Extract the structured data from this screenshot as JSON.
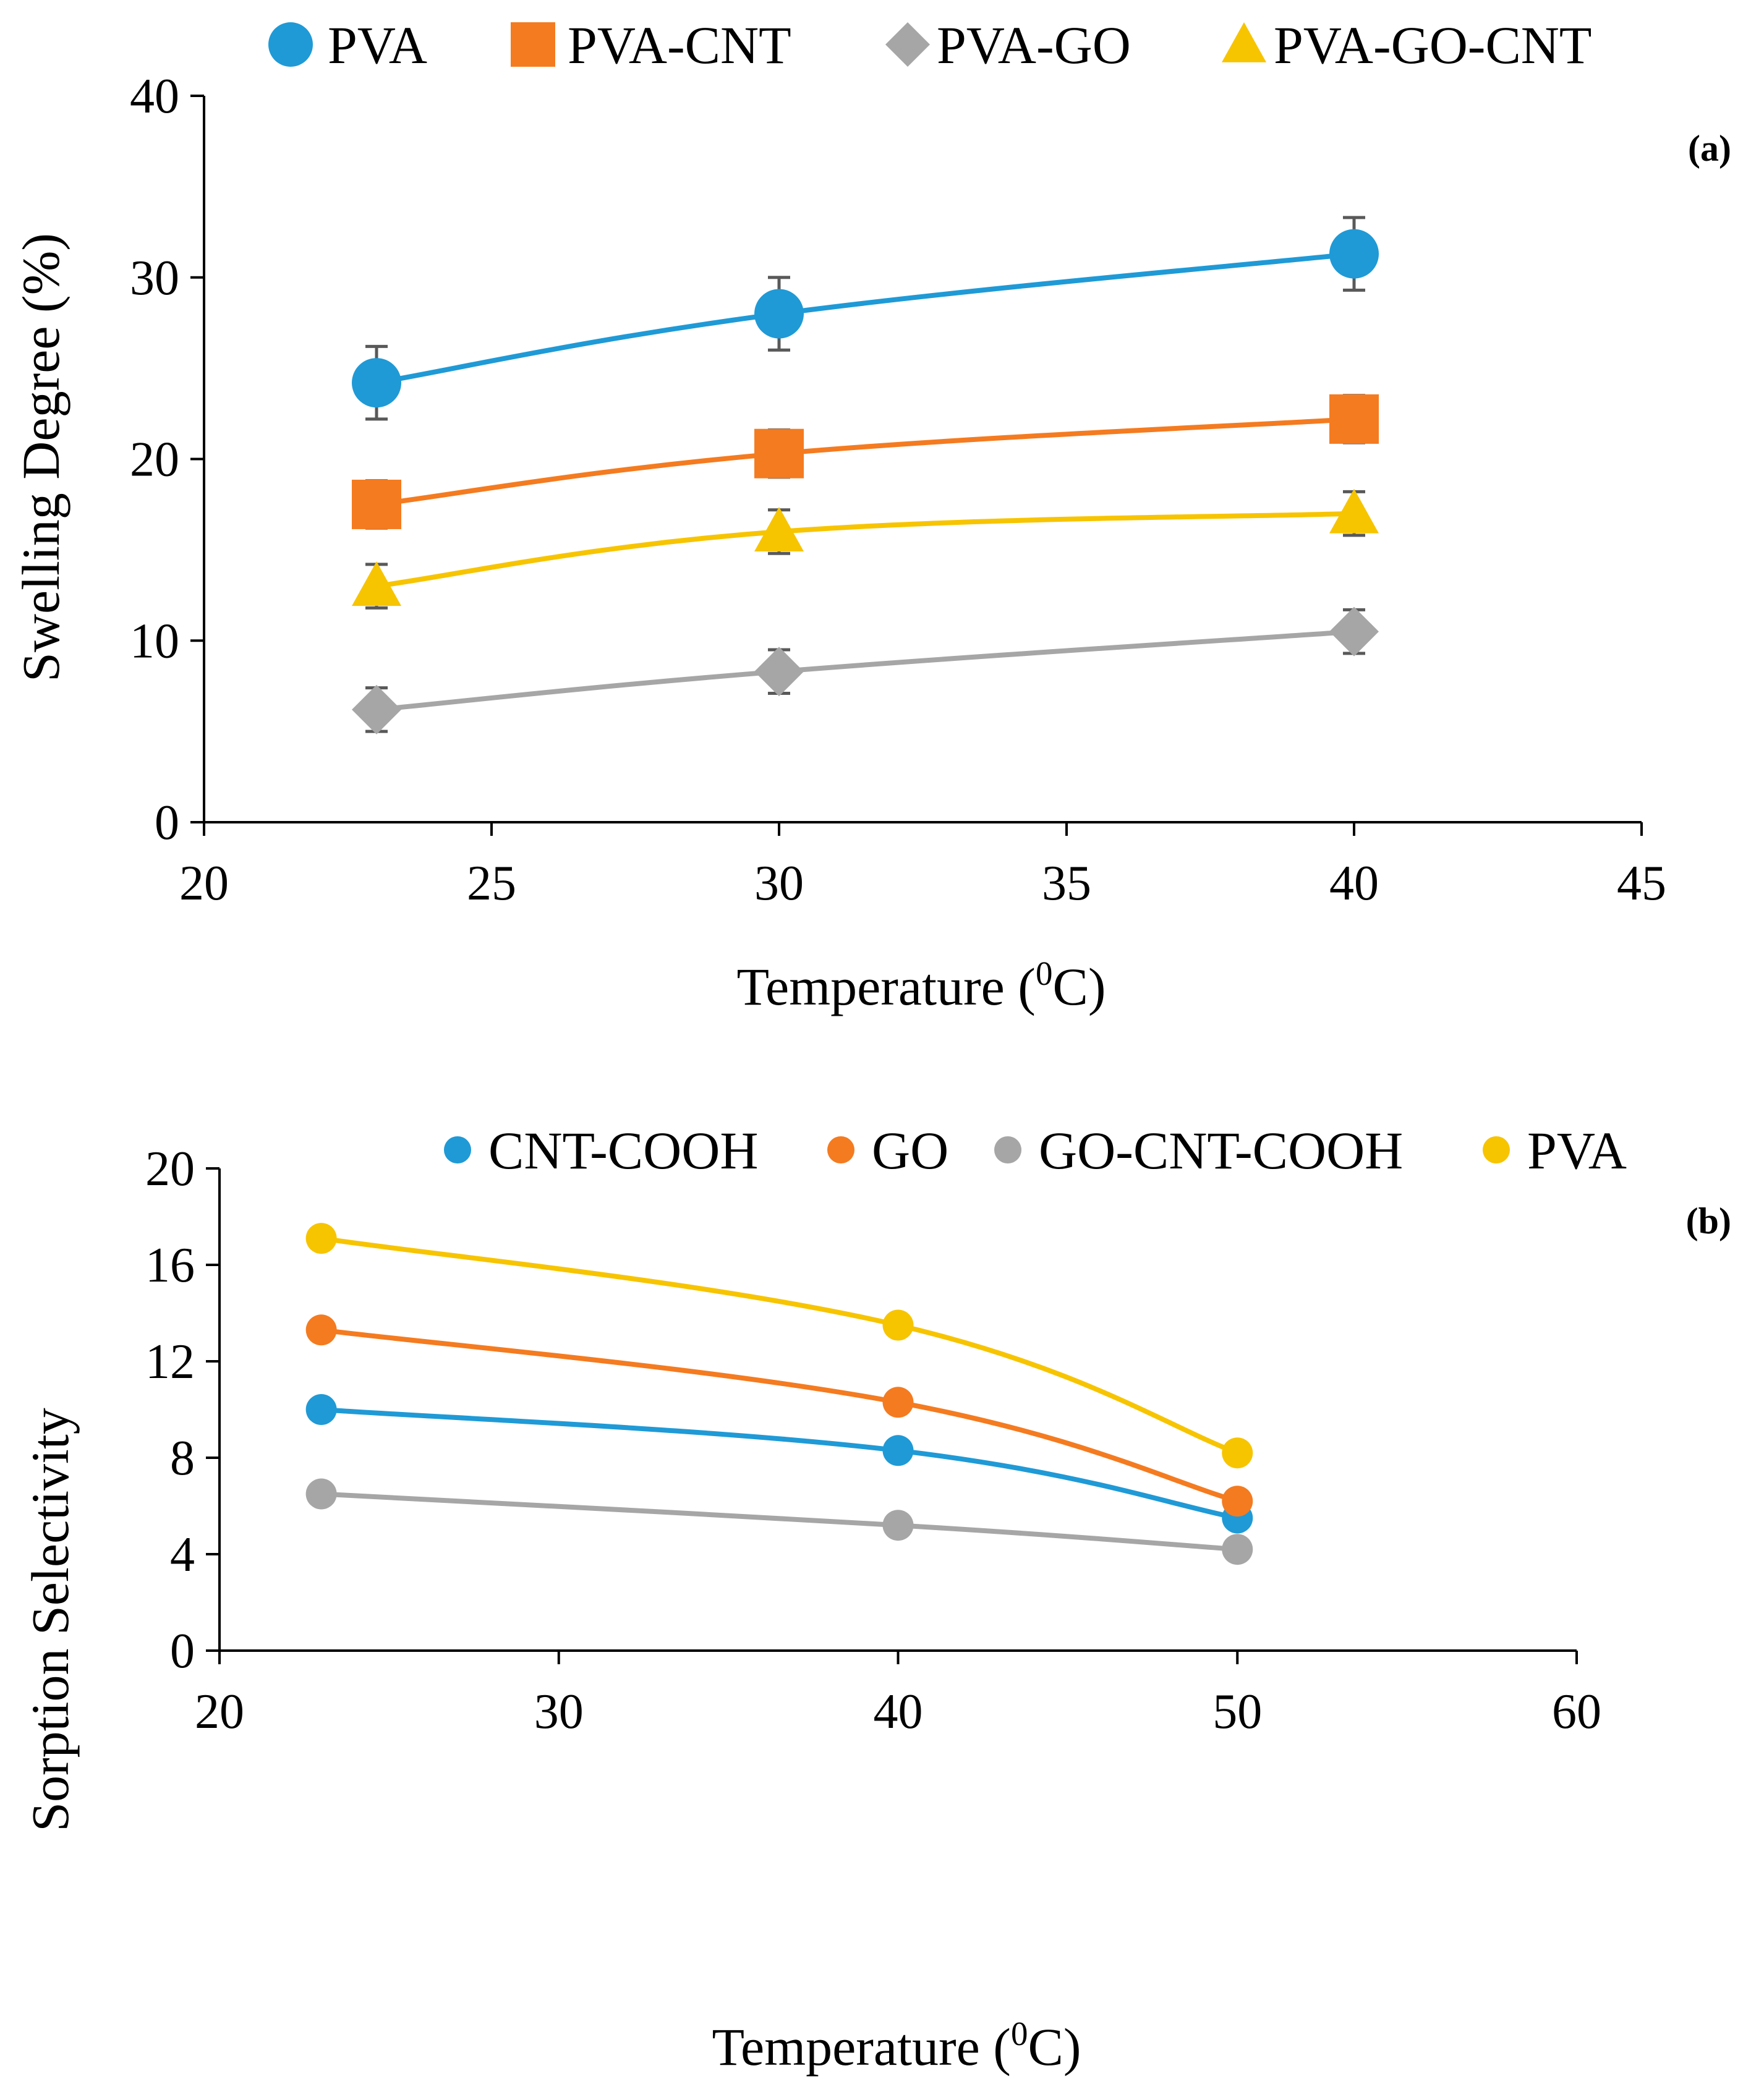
{
  "colors": {
    "blue": "#1f9ad6",
    "orange": "#f47b20",
    "gray": "#a6a6a6",
    "yellow": "#f7c400",
    "error": "#595959"
  },
  "chart_data": [
    {
      "id": "a",
      "type": "line",
      "panel_label": "(a)",
      "xlabel": "Temperature (",
      "xlabel_sup": "0",
      "xlabel_end": "C)",
      "ylabel": "Swelling Degree (%)",
      "xlim": [
        20,
        45
      ],
      "ylim": [
        0,
        40
      ],
      "xticks": [
        20,
        25,
        30,
        35,
        40,
        45
      ],
      "yticks": [
        0,
        10,
        20,
        30,
        40
      ],
      "x": [
        23,
        30,
        40
      ],
      "legend_position": "top",
      "series": [
        {
          "name": "PVA",
          "marker": "circle",
          "color": "#1f9ad6",
          "values": [
            24.2,
            28.0,
            31.3
          ],
          "errors": [
            2.0,
            2.0,
            2.0
          ]
        },
        {
          "name": "PVA-CNT",
          "marker": "square",
          "color": "#f47b20",
          "values": [
            17.5,
            20.3,
            22.2
          ],
          "errors": [
            1.3,
            1.3,
            1.3
          ]
        },
        {
          "name": "PVA-GO",
          "marker": "diamond",
          "color": "#a6a6a6",
          "values": [
            6.2,
            8.3,
            10.5
          ],
          "errors": [
            1.2,
            1.2,
            1.2
          ]
        },
        {
          "name": "PVA-GO-CNT",
          "marker": "triangle",
          "color": "#f7c400",
          "values": [
            13.0,
            16.0,
            17.0
          ],
          "errors": [
            1.2,
            1.2,
            1.2
          ]
        }
      ]
    },
    {
      "id": "b",
      "type": "line",
      "panel_label": "(b)",
      "xlabel": "Temperature (",
      "xlabel_sup": "0",
      "xlabel_end": "C)",
      "ylabel": "Sorption Selectivity",
      "xlim": [
        20,
        60
      ],
      "ylim": [
        0,
        20
      ],
      "xticks": [
        20,
        30,
        40,
        50,
        60
      ],
      "yticks": [
        0,
        4,
        8,
        12,
        16,
        20
      ],
      "x": [
        23,
        40,
        50
      ],
      "legend_position": "top",
      "series": [
        {
          "name": "CNT-COOH",
          "marker": "circle",
          "color": "#1f9ad6",
          "values": [
            10.0,
            8.3,
            5.5
          ]
        },
        {
          "name": "GO",
          "marker": "circle",
          "color": "#f47b20",
          "values": [
            13.3,
            10.3,
            6.2
          ]
        },
        {
          "name": "GO-CNT-COOH",
          "marker": "circle",
          "color": "#a6a6a6",
          "values": [
            6.5,
            5.2,
            4.2
          ]
        },
        {
          "name": "PVA",
          "marker": "circle",
          "color": "#f7c400",
          "values": [
            17.1,
            13.5,
            8.2
          ]
        }
      ]
    }
  ]
}
